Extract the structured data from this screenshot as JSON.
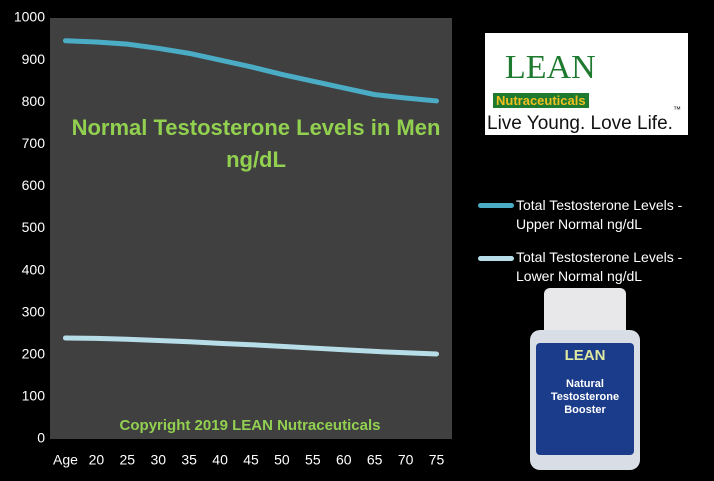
{
  "chart_data": {
    "type": "line",
    "title": "Normal Testosterone Levels in Men ng/dL",
    "annotation": "Copyright 2019 LEAN Nutraceuticals",
    "categories": [
      "Age",
      "20",
      "25",
      "30",
      "35",
      "40",
      "45",
      "50",
      "55",
      "60",
      "65",
      "70",
      "75"
    ],
    "series": [
      {
        "name": "Total Testosterone Levels - Upper Normal ng/dL",
        "color": "#4bacc6",
        "values": [
          946,
          943,
          938,
          928,
          916,
          900,
          884,
          866,
          850,
          834,
          818,
          810,
          803
        ]
      },
      {
        "name": "Total Testosterone Levels - Lower Normal ng/dL",
        "color": "#b7dee8",
        "values": [
          240,
          239,
          237,
          234,
          231,
          227,
          224,
          220,
          216,
          212,
          208,
          205,
          202
        ]
      }
    ],
    "ylim": [
      0,
      1000
    ],
    "yticks": [
      0,
      100,
      200,
      300,
      400,
      500,
      600,
      700,
      800,
      900,
      1000
    ],
    "grid": false,
    "plot_color": "#404040",
    "legend": "right"
  },
  "logo": {
    "brand": "LEAN",
    "line": "Nutraceuticals",
    "tagline": "Live Young. Love Life.",
    "mark": "™"
  },
  "product": {
    "brand": "LEAN",
    "name": "Natural Testosterone Booster"
  }
}
